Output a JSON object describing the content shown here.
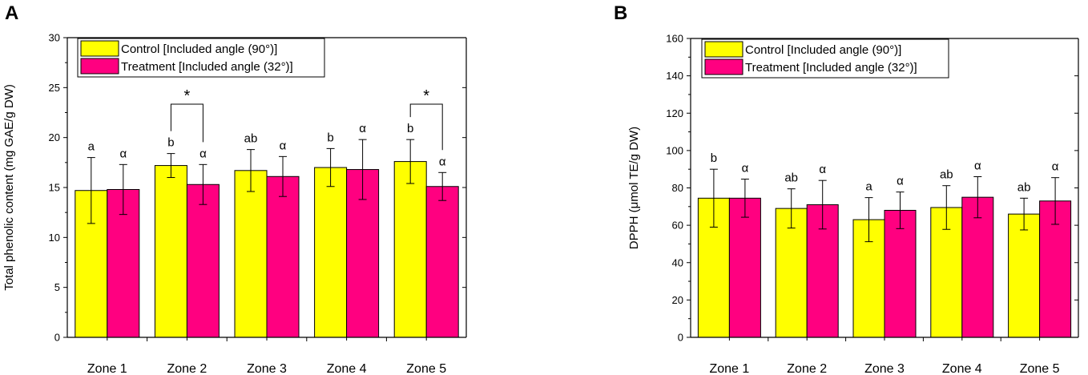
{
  "colors": {
    "control": "#ffff00",
    "treatment": "#ff0080",
    "axis": "#000000"
  },
  "chart_data": [
    {
      "panel": "A",
      "type": "bar",
      "ylabel": "Total phenolic content (mg GAE/g DW)",
      "xlabel": "",
      "ylim": [
        0,
        30
      ],
      "yticks": [
        0,
        5,
        10,
        15,
        20,
        25,
        30
      ],
      "categories": [
        "Zone 1",
        "Zone 2",
        "Zone 3",
        "Zone 4",
        "Zone 5"
      ],
      "legend_position": "top-left",
      "series": [
        {
          "name": "Control [Included angle (90°)]",
          "values": [
            14.7,
            17.2,
            16.7,
            17.0,
            17.6
          ],
          "errors": [
            3.3,
            1.2,
            2.1,
            1.9,
            2.2
          ],
          "labels": [
            "a",
            "b",
            "ab",
            "b",
            "b"
          ]
        },
        {
          "name": "Treatment [Included angle (32°)]",
          "values": [
            14.8,
            15.3,
            16.1,
            16.8,
            15.1
          ],
          "errors": [
            2.5,
            2.0,
            2.0,
            3.0,
            1.4
          ],
          "labels": [
            "α",
            "α",
            "α",
            "α",
            "α"
          ]
        }
      ],
      "significance": [
        {
          "category_index": 1,
          "label": "*"
        },
        {
          "category_index": 4,
          "label": "*"
        }
      ]
    },
    {
      "panel": "B",
      "type": "bar",
      "ylabel": "DPPH (μmol TE/g DW)",
      "xlabel": "",
      "ylim": [
        0,
        160
      ],
      "yticks": [
        0,
        20,
        40,
        60,
        80,
        100,
        120,
        140,
        160
      ],
      "categories": [
        "Zone 1",
        "Zone 2",
        "Zone 3",
        "Zone 4",
        "Zone 5"
      ],
      "legend_position": "top-left",
      "series": [
        {
          "name": "Control [Included angle (90°)]",
          "values": [
            74.5,
            69.0,
            63.0,
            69.5,
            66.0
          ],
          "errors": [
            15.5,
            10.5,
            11.8,
            11.7,
            8.5
          ],
          "labels": [
            "b",
            "ab",
            "a",
            "ab",
            "ab"
          ]
        },
        {
          "name": "Treatment [Included angle (32°)]",
          "values": [
            74.5,
            71.0,
            68.0,
            75.0,
            73.0
          ],
          "errors": [
            10.2,
            13.0,
            9.8,
            11.0,
            12.5
          ],
          "labels": [
            "α",
            "α",
            "α",
            "α",
            "α"
          ]
        }
      ],
      "significance": []
    }
  ]
}
